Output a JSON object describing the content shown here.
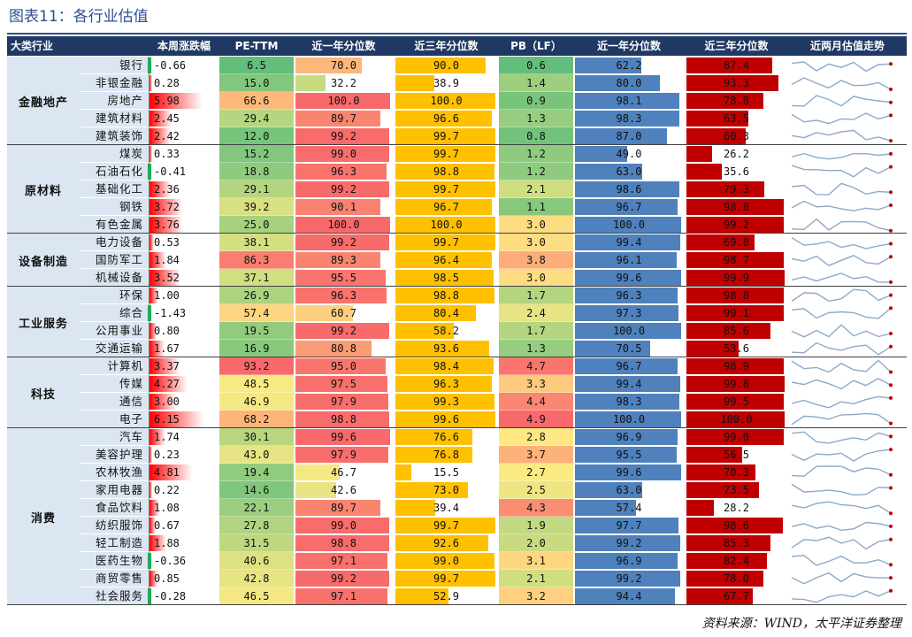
{
  "title": "图表11：各行业估值",
  "source": "资料来源：WIND，太平洋证券整理",
  "headers": {
    "category": "大类行业",
    "weekly_change": "本周涨跌幅",
    "pe_ttm": "PE-TTM",
    "pe_1y": "近一年分位数",
    "pe_3y": "近三年分位数",
    "pb_lf": "PB（LF）",
    "pb_1y": "近一年分位数",
    "pb_3y": "近三年分位数",
    "trend": "近两月估值走势"
  },
  "colors": {
    "header_bg": "#1f3864",
    "title": "#2e4f8c",
    "bar_orange": "#ffc000",
    "bar_blue": "#4f81bd",
    "bar_red": "#c00000",
    "pos_change": "#ff0000",
    "neg_change": "#00b050",
    "spark_line": "#8ea9c8",
    "spark_dot": "#c00000"
  },
  "groups": [
    {
      "name": "金融地产",
      "count": 5
    },
    {
      "name": "原材料",
      "count": 5
    },
    {
      "name": "设备制造",
      "count": 3
    },
    {
      "name": "工业服务",
      "count": 4
    },
    {
      "name": "科技",
      "count": 4
    },
    {
      "name": "消费",
      "count": 10
    }
  ],
  "rows": [
    {
      "industry": "银行",
      "chg": "-0.66",
      "pe": "6.5",
      "pe1": "70.0",
      "pe3": "90.0",
      "pb": "0.6",
      "pb1": "62.2",
      "pb3": "87.4"
    },
    {
      "industry": "非银金融",
      "chg": "0.28",
      "pe": "15.0",
      "pe1": "32.2",
      "pe3": "38.9",
      "pb": "1.4",
      "pb1": "80.0",
      "pb3": "93.3"
    },
    {
      "industry": "房地产",
      "chg": "5.98",
      "pe": "66.6",
      "pe1": "100.0",
      "pe3": "100.0",
      "pb": "0.9",
      "pb1": "98.1",
      "pb3": "78.8"
    },
    {
      "industry": "建筑材料",
      "chg": "2.45",
      "pe": "29.4",
      "pe1": "89.7",
      "pe3": "96.6",
      "pb": "1.3",
      "pb1": "98.3",
      "pb3": "63.5"
    },
    {
      "industry": "建筑装饰",
      "chg": "2.42",
      "pe": "12.0",
      "pe1": "99.2",
      "pe3": "99.7",
      "pb": "0.8",
      "pb1": "87.0",
      "pb3": "60.3"
    },
    {
      "industry": "煤炭",
      "chg": "0.33",
      "pe": "15.2",
      "pe1": "99.0",
      "pe3": "99.7",
      "pb": "1.2",
      "pb1": "49.0",
      "pb3": "26.2"
    },
    {
      "industry": "石油石化",
      "chg": "-0.41",
      "pe": "18.8",
      "pe1": "96.3",
      "pe3": "98.8",
      "pb": "1.2",
      "pb1": "63.0",
      "pb3": "35.6"
    },
    {
      "industry": "基础化工",
      "chg": "2.36",
      "pe": "29.1",
      "pe1": "99.2",
      "pe3": "99.7",
      "pb": "2.1",
      "pb1": "98.6",
      "pb3": "79.3"
    },
    {
      "industry": "钢铁",
      "chg": "3.72",
      "pe": "39.2",
      "pe1": "90.1",
      "pe3": "96.7",
      "pb": "1.1",
      "pb1": "96.7",
      "pb3": "98.8"
    },
    {
      "industry": "有色金属",
      "chg": "3.76",
      "pe": "25.0",
      "pe1": "100.0",
      "pe3": "100.0",
      "pb": "3.0",
      "pb1": "100.0",
      "pb3": "99.2"
    },
    {
      "industry": "电力设备",
      "chg": "0.53",
      "pe": "38.1",
      "pe1": "99.2",
      "pe3": "99.7",
      "pb": "3.0",
      "pb1": "99.4",
      "pb3": "69.8"
    },
    {
      "industry": "国防军工",
      "chg": "1.84",
      "pe": "86.3",
      "pe1": "89.3",
      "pe3": "96.4",
      "pb": "3.8",
      "pb1": "96.1",
      "pb3": "98.7"
    },
    {
      "industry": "机械设备",
      "chg": "3.52",
      "pe": "37.1",
      "pe1": "95.5",
      "pe3": "98.5",
      "pb": "3.0",
      "pb1": "99.6",
      "pb3": "99.9"
    },
    {
      "industry": "环保",
      "chg": "1.00",
      "pe": "26.9",
      "pe1": "96.3",
      "pe3": "98.8",
      "pb": "1.7",
      "pb1": "96.3",
      "pb3": "98.8"
    },
    {
      "industry": "综合",
      "chg": "-1.43",
      "pe": "57.4",
      "pe1": "60.7",
      "pe3": "80.4",
      "pb": "2.4",
      "pb1": "97.3",
      "pb3": "99.1"
    },
    {
      "industry": "公用事业",
      "chg": "0.80",
      "pe": "19.5",
      "pe1": "99.2",
      "pe3": "58.2",
      "pb": "1.7",
      "pb1": "100.0",
      "pb3": "85.6"
    },
    {
      "industry": "交通运输",
      "chg": "1.67",
      "pe": "16.9",
      "pe1": "80.8",
      "pe3": "93.6",
      "pb": "1.3",
      "pb1": "70.5",
      "pb3": "53.6"
    },
    {
      "industry": "计算机",
      "chg": "3.37",
      "pe": "93.2",
      "pe1": "95.0",
      "pe3": "98.4",
      "pb": "4.7",
      "pb1": "96.7",
      "pb3": "98.9"
    },
    {
      "industry": "传媒",
      "chg": "4.27",
      "pe": "48.5",
      "pe1": "97.5",
      "pe3": "96.3",
      "pb": "3.3",
      "pb1": "99.4",
      "pb3": "99.8"
    },
    {
      "industry": "通信",
      "chg": "3.00",
      "pe": "46.9",
      "pe1": "97.9",
      "pe3": "99.3",
      "pb": "4.4",
      "pb1": "98.3",
      "pb3": "99.5"
    },
    {
      "industry": "电子",
      "chg": "6.15",
      "pe": "68.2",
      "pe1": "98.8",
      "pe3": "99.6",
      "pb": "4.9",
      "pb1": "100.0",
      "pb3": "100.0"
    },
    {
      "industry": "汽车",
      "chg": "1.74",
      "pe": "30.1",
      "pe1": "99.6",
      "pe3": "76.6",
      "pb": "2.8",
      "pb1": "96.9",
      "pb3": "99.0"
    },
    {
      "industry": "美容护理",
      "chg": "0.23",
      "pe": "43.0",
      "pe1": "97.9",
      "pe3": "76.8",
      "pb": "3.7",
      "pb1": "95.5",
      "pb3": "56.5"
    },
    {
      "industry": "农林牧渔",
      "chg": "4.81",
      "pe": "19.4",
      "pe1": "46.7",
      "pe3": "15.5",
      "pb": "2.7",
      "pb1": "99.6",
      "pb3": "70.3"
    },
    {
      "industry": "家用电器",
      "chg": "0.22",
      "pe": "14.6",
      "pe1": "42.6",
      "pe3": "73.0",
      "pb": "2.5",
      "pb1": "63.0",
      "pb3": "73.5"
    },
    {
      "industry": "食品饮料",
      "chg": "1.08",
      "pe": "22.1",
      "pe1": "89.7",
      "pe3": "39.4",
      "pb": "4.3",
      "pb1": "57.4",
      "pb3": "28.2"
    },
    {
      "industry": "纺织服饰",
      "chg": "0.67",
      "pe": "27.8",
      "pe1": "99.0",
      "pe3": "99.7",
      "pb": "1.9",
      "pb1": "97.7",
      "pb3": "98.6"
    },
    {
      "industry": "轻工制造",
      "chg": "1.88",
      "pe": "31.5",
      "pe1": "98.8",
      "pe3": "92.6",
      "pb": "2.0",
      "pb1": "99.2",
      "pb3": "85.3"
    },
    {
      "industry": "医药生物",
      "chg": "-0.36",
      "pe": "40.6",
      "pe1": "97.1",
      "pe3": "99.0",
      "pb": "3.1",
      "pb1": "96.9",
      "pb3": "82.4"
    },
    {
      "industry": "商贸零售",
      "chg": "0.85",
      "pe": "42.8",
      "pe1": "99.2",
      "pe3": "99.7",
      "pb": "2.1",
      "pb1": "99.2",
      "pb3": "78.0"
    },
    {
      "industry": "社会服务",
      "chg": "-0.28",
      "pe": "46.5",
      "pe1": "97.1",
      "pe3": "52.9",
      "pb": "3.2",
      "pb1": "94.4",
      "pb3": "67.7"
    }
  ]
}
